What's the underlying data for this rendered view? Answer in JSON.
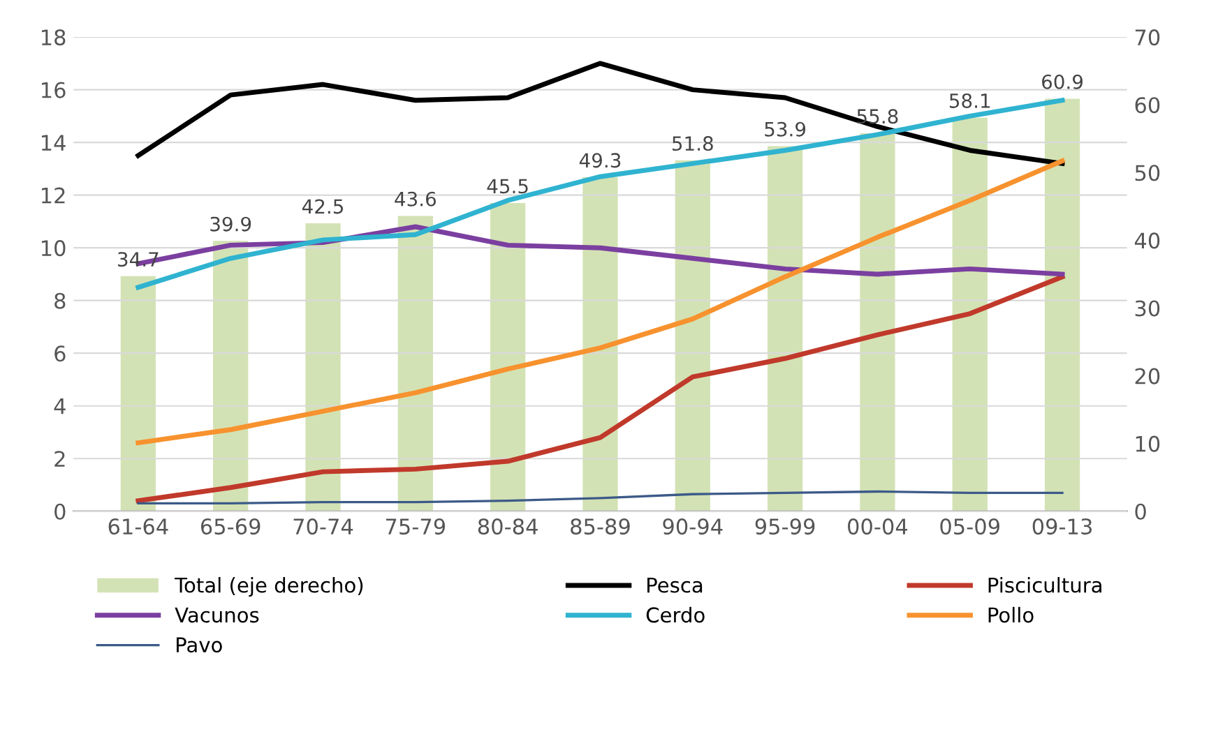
{
  "chart_data": {
    "type": "line",
    "categories": [
      "61-64",
      "65-69",
      "70-74",
      "75-79",
      "80-84",
      "85-89",
      "90-94",
      "95-99",
      "00-04",
      "05-09",
      "09-13"
    ],
    "series": [
      {
        "name": "Total (eje derecho)",
        "type": "bar",
        "axis": "y2",
        "color": "#d3e2b4",
        "data_labels": true,
        "values": [
          34.7,
          39.9,
          42.5,
          43.6,
          45.5,
          49.3,
          51.8,
          53.9,
          55.8,
          58.1,
          60.9
        ]
      },
      {
        "name": "Pesca",
        "color": "#000000",
        "values": [
          13.5,
          15.8,
          16.2,
          15.6,
          15.7,
          17.0,
          16.0,
          15.7,
          14.6,
          13.7,
          13.2
        ]
      },
      {
        "name": "Piscicultura",
        "color": "#c0392b",
        "values": [
          0.4,
          0.9,
          1.5,
          1.6,
          1.9,
          2.8,
          5.1,
          5.8,
          6.7,
          7.5,
          8.9
        ]
      },
      {
        "name": "Vacunos",
        "color": "#7b3fa0",
        "values": [
          9.4,
          10.1,
          10.2,
          10.8,
          10.1,
          10.0,
          9.6,
          9.2,
          9.0,
          9.2,
          9.0
        ]
      },
      {
        "name": "Cerdo",
        "color": "#2fb3d0",
        "values": [
          8.5,
          9.6,
          10.3,
          10.5,
          11.8,
          12.7,
          13.2,
          13.7,
          14.3,
          15.0,
          15.6
        ]
      },
      {
        "name": "Pollo",
        "color": "#f7922e",
        "values": [
          2.6,
          3.1,
          3.8,
          4.5,
          5.4,
          6.2,
          7.3,
          8.9,
          10.4,
          11.8,
          13.3
        ]
      },
      {
        "name": "Pavo",
        "color": "#3c5a88",
        "values": [
          0.3,
          0.3,
          0.35,
          0.35,
          0.4,
          0.5,
          0.65,
          0.7,
          0.75,
          0.7,
          0.7
        ]
      }
    ],
    "ylim": [
      0,
      18
    ],
    "yticks": [
      0,
      2,
      4,
      6,
      8,
      10,
      12,
      14,
      16,
      18
    ],
    "y2lim": [
      0,
      70
    ],
    "y2ticks": [
      0,
      10,
      20,
      30,
      40,
      50,
      60,
      70
    ],
    "grid": "y",
    "legend": "bottom",
    "marker": "none",
    "line_style": "solid"
  }
}
